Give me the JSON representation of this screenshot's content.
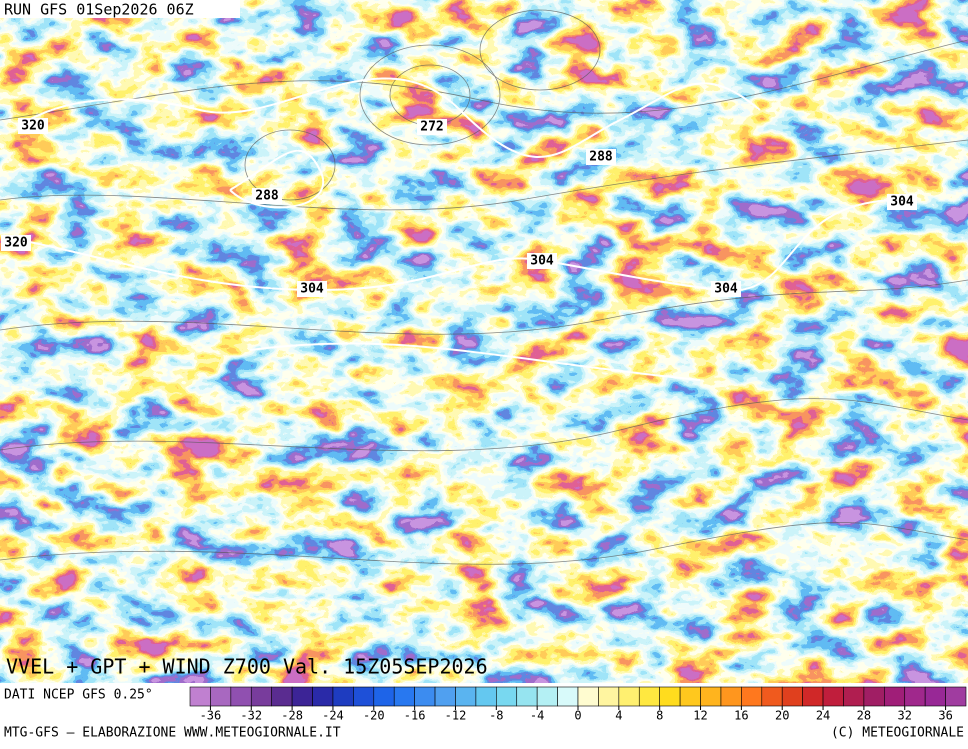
{
  "header": {
    "run": "RUN GFS 01Sep2026 06Z"
  },
  "map": {
    "title": "VVEL + GPT + WIND Z700 Val. 15Z05SEP2026",
    "contour_labels": [
      320,
      320,
      288,
      272,
      288,
      304,
      304,
      304,
      304
    ]
  },
  "legend": {
    "source": "DATI NCEP GFS 0.25°",
    "ticks": [
      -36,
      -32,
      -28,
      -24,
      -20,
      -16,
      -12,
      -8,
      -4,
      0,
      4,
      8,
      12,
      16,
      20,
      24,
      28,
      32,
      36
    ],
    "colors": [
      "#c080d0",
      "#a868c0",
      "#9050b0",
      "#783c9c",
      "#5a2c90",
      "#3c2496",
      "#2a2aa8",
      "#1e3cc0",
      "#1e50d8",
      "#1e64e8",
      "#2878f0",
      "#3c8cf0",
      "#50a0f0",
      "#5ab4f0",
      "#64c8f0",
      "#78d8f0",
      "#96e4f0",
      "#b4f0f4",
      "#d8fafa",
      "#fffcd0",
      "#fff5a0",
      "#fff070",
      "#ffe840",
      "#ffdc1e",
      "#ffc81e",
      "#ffb41e",
      "#ff961e",
      "#ff781e",
      "#f05a1e",
      "#e0401e",
      "#d02828",
      "#c01e3c",
      "#b01e50",
      "#a01e64",
      "#a01e78",
      "#a0288c",
      "#982896",
      "#a03ca0"
    ]
  },
  "footer": {
    "left": "MTG-GFS – ELABORAZIONE WWW.METEOGIORNALE.IT",
    "right": "(C) METEOGIORNALE"
  }
}
